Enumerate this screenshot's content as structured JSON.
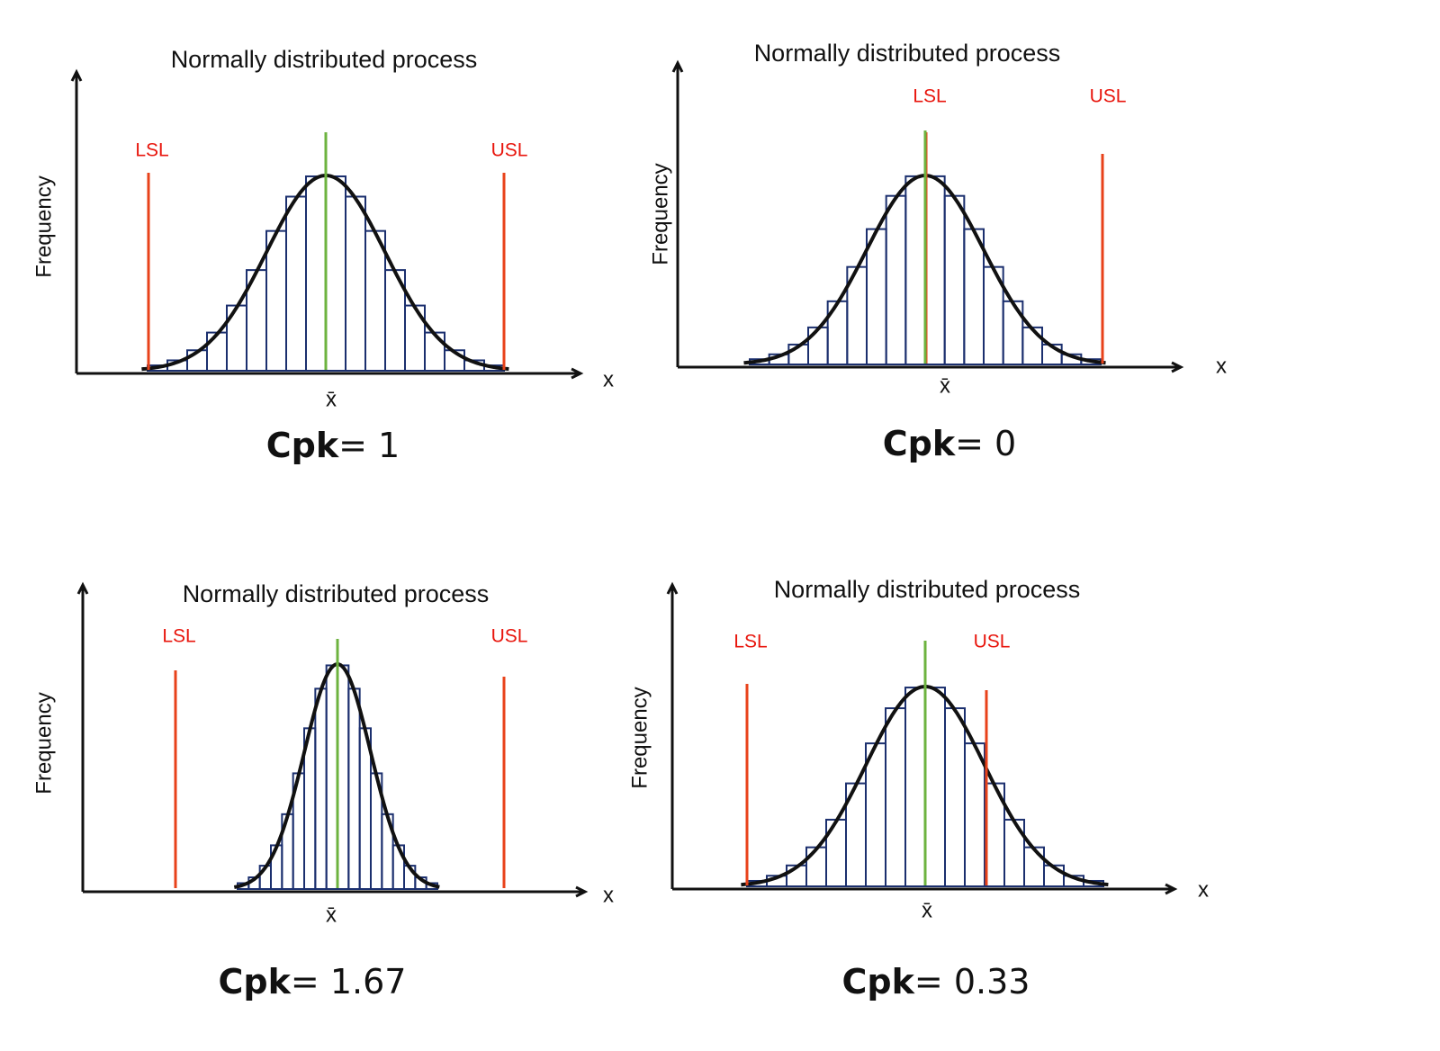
{
  "panels": [
    {
      "title": "Normally distributed process",
      "y_label": "Frequency",
      "x_label": "x",
      "mean_label": "x̄",
      "lsl_label": "LSL",
      "usl_label": "USL",
      "cpk_label": "Cpk",
      "cpk_value": "= 1"
    },
    {
      "title": "Normally distributed process",
      "y_label": "Frequency",
      "x_label": "x",
      "mean_label": "x̄",
      "lsl_label": "LSL",
      "usl_label": "USL",
      "cpk_label": "Cpk",
      "cpk_value": "= 0"
    },
    {
      "title": "Normally distributed process",
      "y_label": "Frequency",
      "x_label": "x",
      "mean_label": "x̄",
      "lsl_label": "LSL",
      "usl_label": "USL",
      "cpk_label": "Cpk",
      "cpk_value": "= 1.67"
    },
    {
      "title": "Normally distributed process",
      "y_label": "Frequency",
      "x_label": "x",
      "mean_label": "x̄",
      "lsl_label": "LSL",
      "usl_label": "USL",
      "cpk_label": "Cpk",
      "cpk_value": "= 0.33"
    }
  ]
}
